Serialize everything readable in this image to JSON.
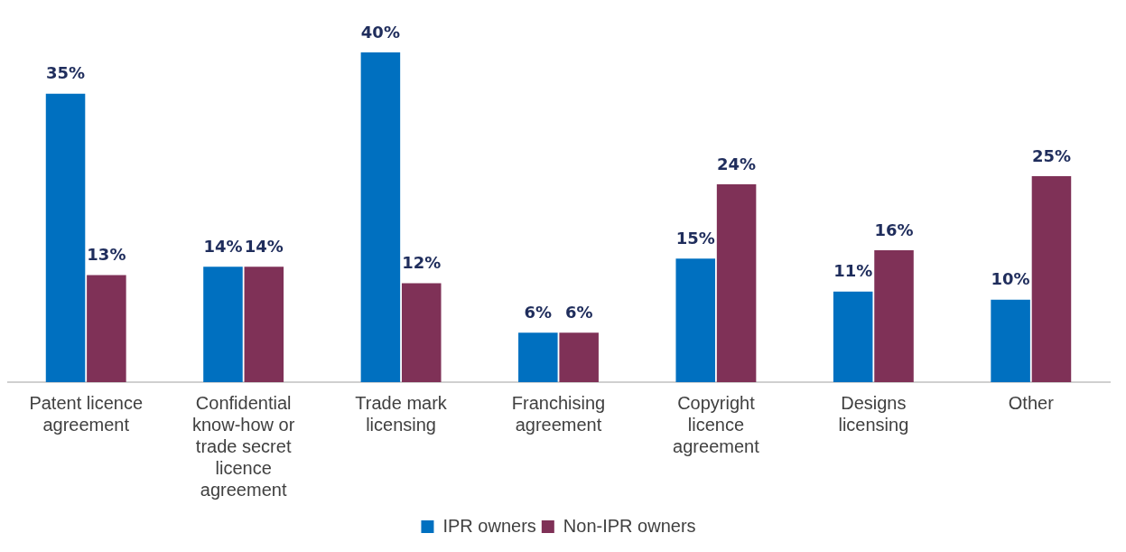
{
  "chart_data": {
    "type": "bar",
    "categories": [
      "Patent licence agreement",
      "Confidential know-how or trade secret licence agreement",
      "Trade mark licensing",
      "Franchising agreement",
      "Copyright licence agreement",
      "Designs licensing",
      "Other"
    ],
    "series": [
      {
        "name": "IPR owners",
        "color": "#0070c0",
        "values": [
          35,
          14,
          40,
          6,
          15,
          11,
          10
        ],
        "value_labels": [
          "35%",
          "14%",
          "40%",
          "6%",
          "15%",
          "11%",
          "10%"
        ]
      },
      {
        "name": "Non-IPR owners",
        "color": "#7f3157",
        "values": [
          13,
          14,
          12,
          6,
          24,
          16,
          25
        ],
        "value_labels": [
          "13%",
          "14%",
          "12%",
          "6%",
          "24%",
          "16%",
          "25%"
        ]
      }
    ],
    "grid": false,
    "legend": "bottom"
  }
}
